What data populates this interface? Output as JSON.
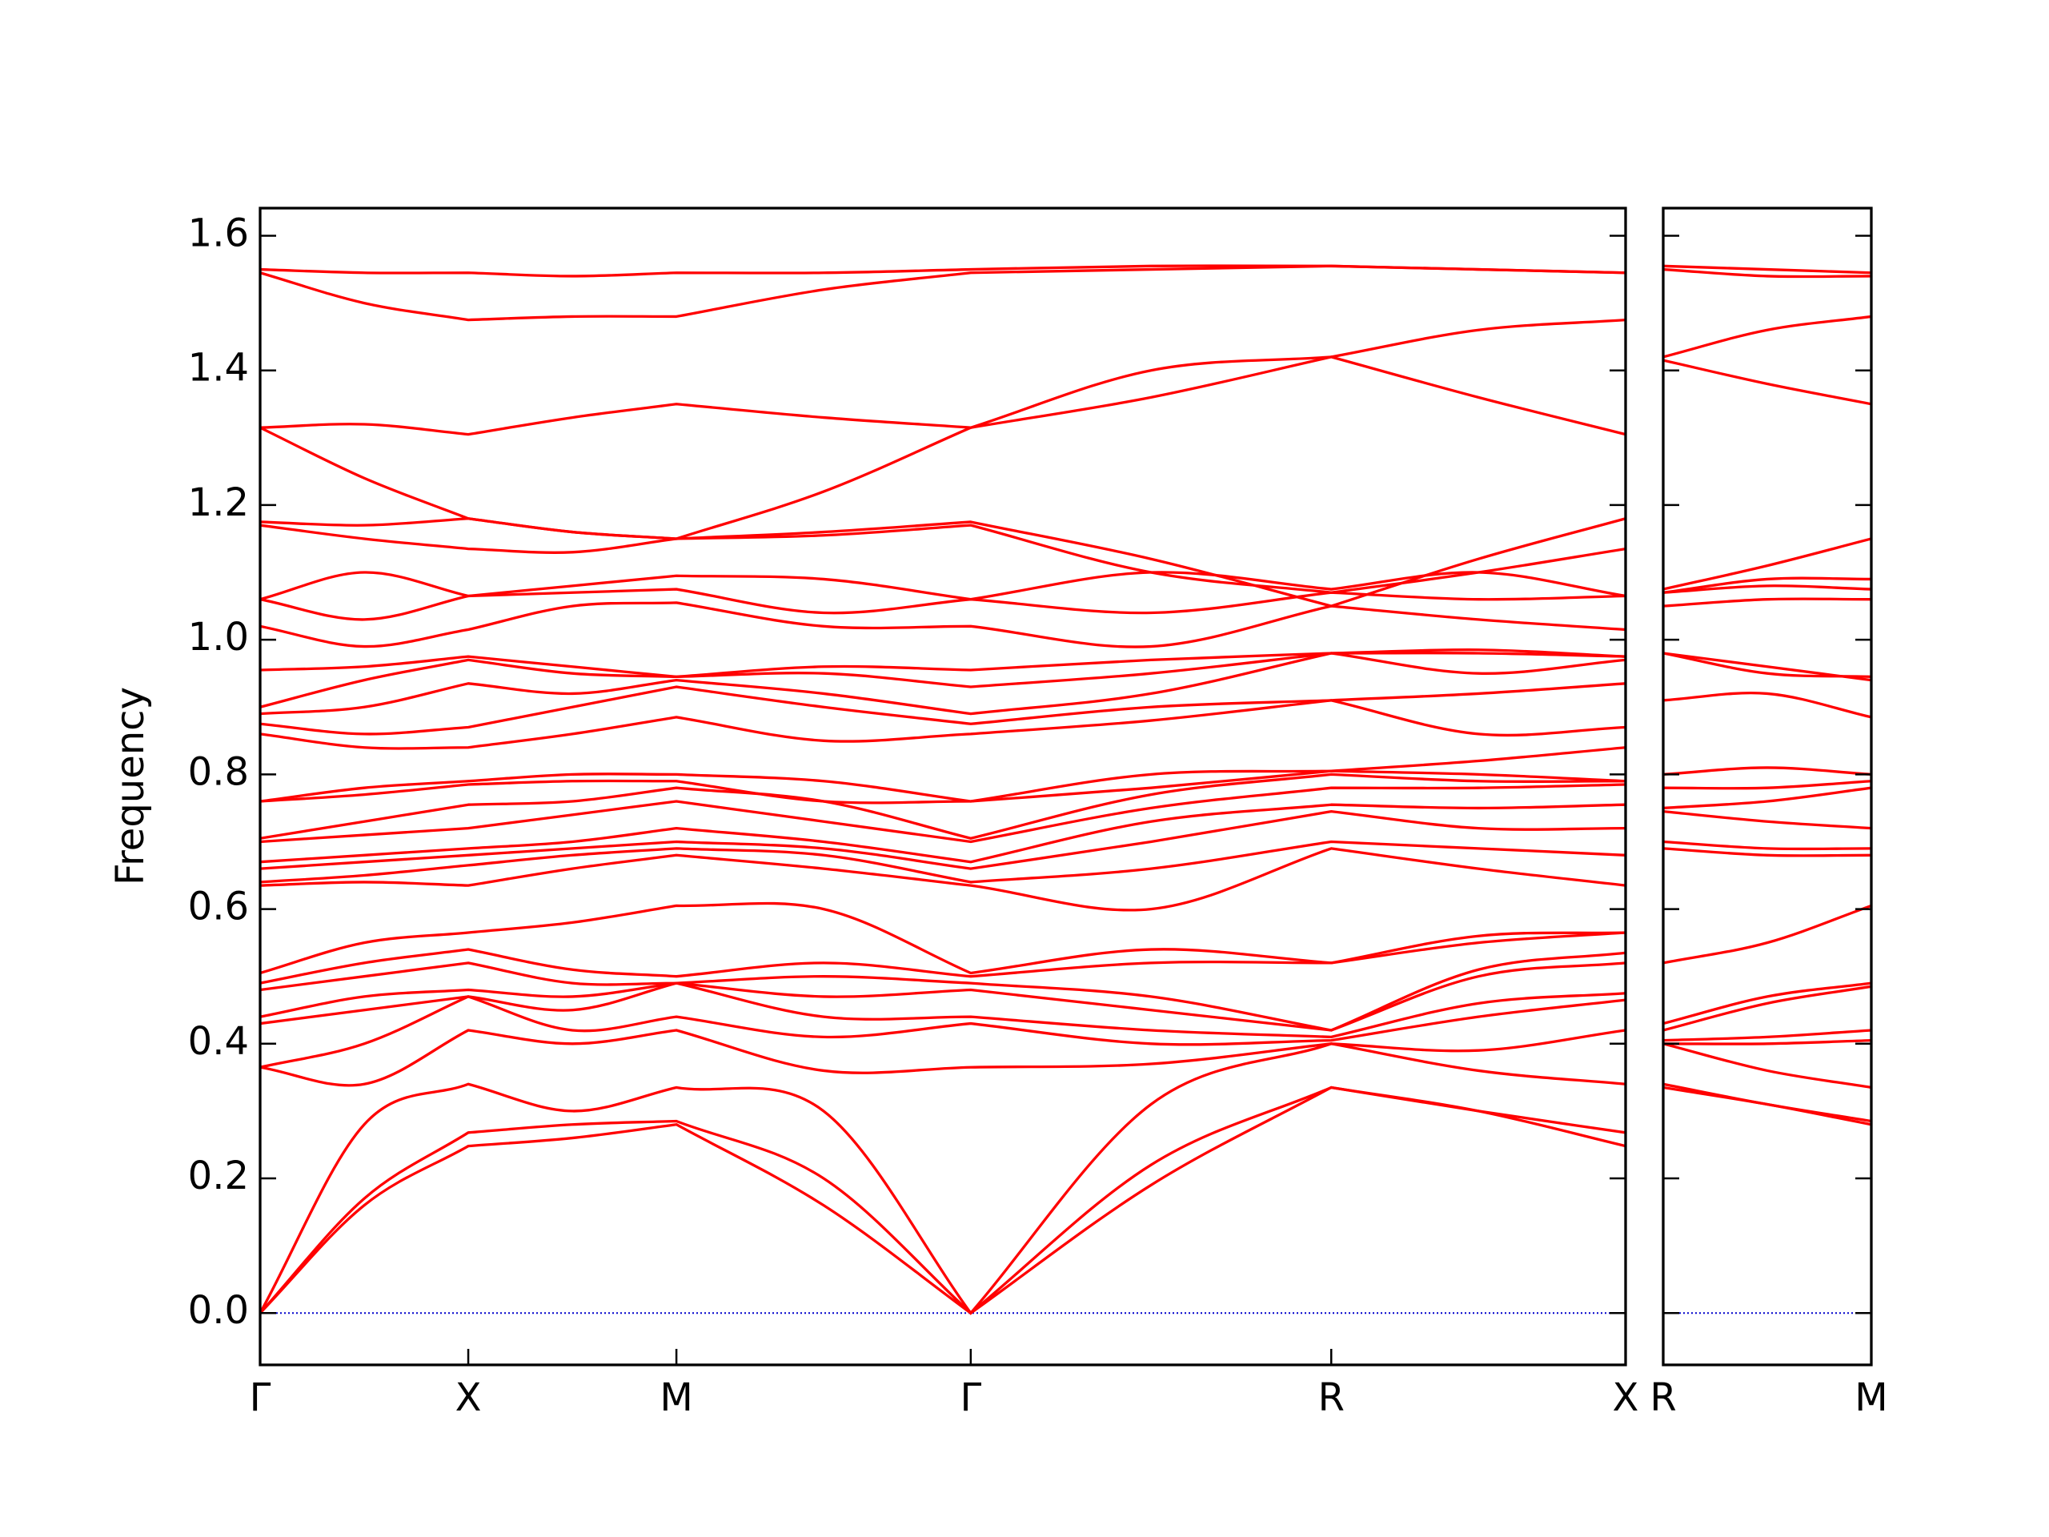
{
  "chart_data": [
    {
      "type": "line",
      "ylabel": "Frequency",
      "color": "#ff0000",
      "hline": 0,
      "hline_color": "#0000cc",
      "ytick_labels": true,
      "ylim": [
        -0.077,
        1.641
      ],
      "yticks": [
        {
          "value": 0,
          "label": "0.0"
        },
        0.2,
        0.4,
        0.6,
        0.8,
        {
          "value": 1.0,
          "label": "1.0"
        },
        1.2,
        1.4,
        1.6
      ],
      "xlim": [
        0,
        3.2802
      ],
      "xticks": [
        {
          "value": 0,
          "label": "Γ"
        },
        {
          "value": 0.5,
          "label": "X"
        },
        {
          "value": 1.0,
          "label": "M"
        },
        {
          "value": 1.7071,
          "label": "Γ"
        },
        {
          "value": 2.5731,
          "label": "R"
        },
        {
          "value": 3.2802,
          "label": "X"
        }
      ],
      "x": [
        0,
        0.25,
        0.5,
        0.75,
        1.0,
        1.3536,
        1.7071,
        2.1401,
        2.5731,
        2.9267,
        3.2802
      ],
      "series": [
        {
          "color": "#ff0000",
          "values": [
            0,
            0.16,
            0.248,
            0.26,
            0.28,
            0.16,
            0,
            0.19,
            0.335,
            0.3,
            0.248
          ]
        },
        {
          "color": "#ff0000",
          "values": [
            0,
            0.17,
            0.268,
            0.28,
            0.285,
            0.2,
            0,
            0.22,
            0.335,
            0.3,
            0.268
          ]
        },
        {
          "color": "#ff0000",
          "values": [
            0,
            0.28,
            0.34,
            0.3,
            0.335,
            0.3,
            0,
            0.31,
            0.4,
            0.36,
            0.34
          ]
        },
        {
          "color": "#ff0000",
          "values": [
            0.365,
            0.34,
            0.42,
            0.4,
            0.42,
            0.36,
            0.365,
            0.37,
            0.4,
            0.39,
            0.42
          ]
        },
        {
          "color": "#ff0000",
          "values": [
            0.365,
            0.4,
            0.47,
            0.42,
            0.44,
            0.41,
            0.43,
            0.4,
            0.405,
            0.44,
            0.465
          ]
        },
        {
          "color": "#ff0000",
          "values": [
            0.43,
            0.45,
            0.47,
            0.45,
            0.49,
            0.44,
            0.44,
            0.42,
            0.41,
            0.46,
            0.475
          ]
        },
        {
          "color": "#ff0000",
          "values": [
            0.44,
            0.47,
            0.48,
            0.47,
            0.49,
            0.47,
            0.48,
            0.45,
            0.42,
            0.5,
            0.52
          ]
        },
        {
          "color": "#ff0000",
          "values": [
            0.48,
            0.5,
            0.52,
            0.49,
            0.49,
            0.5,
            0.49,
            0.47,
            0.42,
            0.51,
            0.535
          ]
        },
        {
          "color": "#ff0000",
          "values": [
            0.49,
            0.52,
            0.54,
            0.51,
            0.5,
            0.52,
            0.5,
            0.52,
            0.52,
            0.55,
            0.565
          ]
        },
        {
          "color": "#ff0000",
          "values": [
            0.505,
            0.55,
            0.565,
            0.58,
            0.605,
            0.6,
            0.505,
            0.54,
            0.52,
            0.56,
            0.565
          ]
        },
        {
          "color": "#ff0000",
          "values": [
            0.635,
            0.64,
            0.635,
            0.66,
            0.68,
            0.66,
            0.635,
            0.6,
            0.69,
            0.66,
            0.635
          ]
        },
        {
          "color": "#ff0000",
          "values": [
            0.64,
            0.65,
            0.665,
            0.68,
            0.69,
            0.68,
            0.64,
            0.66,
            0.7,
            0.69,
            0.68
          ]
        },
        {
          "color": "#ff0000",
          "values": [
            0.66,
            0.67,
            0.68,
            0.69,
            0.7,
            0.69,
            0.66,
            0.7,
            0.745,
            0.72,
            0.72
          ]
        },
        {
          "color": "#ff0000",
          "values": [
            0.67,
            0.68,
            0.69,
            0.7,
            0.72,
            0.7,
            0.67,
            0.73,
            0.755,
            0.75,
            0.755
          ]
        },
        {
          "color": "#ff0000",
          "values": [
            0.7,
            0.71,
            0.72,
            0.74,
            0.76,
            0.73,
            0.7,
            0.75,
            0.78,
            0.78,
            0.785
          ]
        },
        {
          "color": "#ff0000",
          "values": [
            0.705,
            0.73,
            0.755,
            0.76,
            0.78,
            0.76,
            0.705,
            0.77,
            0.8,
            0.79,
            0.79
          ]
        },
        {
          "color": "#ff0000",
          "values": [
            0.76,
            0.77,
            0.785,
            0.79,
            0.79,
            0.76,
            0.76,
            0.78,
            0.805,
            0.8,
            0.79
          ]
        },
        {
          "color": "#ff0000",
          "values": [
            0.76,
            0.78,
            0.79,
            0.8,
            0.8,
            0.79,
            0.76,
            0.8,
            0.805,
            0.82,
            0.84
          ]
        },
        {
          "color": "#ff0000",
          "values": [
            0.86,
            0.84,
            0.84,
            0.86,
            0.885,
            0.85,
            0.86,
            0.88,
            0.91,
            0.86,
            0.87
          ]
        },
        {
          "color": "#ff0000",
          "values": [
            0.875,
            0.86,
            0.87,
            0.9,
            0.93,
            0.9,
            0.875,
            0.9,
            0.91,
            0.92,
            0.935
          ]
        },
        {
          "color": "#ff0000",
          "values": [
            0.89,
            0.9,
            0.935,
            0.92,
            0.94,
            0.92,
            0.89,
            0.92,
            0.98,
            0.95,
            0.97
          ]
        },
        {
          "color": "#ff0000",
          "values": [
            0.9,
            0.94,
            0.97,
            0.95,
            0.945,
            0.95,
            0.93,
            0.95,
            0.98,
            0.985,
            0.975
          ]
        },
        {
          "color": "#ff0000",
          "values": [
            0.955,
            0.96,
            0.975,
            0.96,
            0.945,
            0.96,
            0.955,
            0.97,
            0.98,
            0.98,
            0.975
          ]
        },
        {
          "color": "#ff0000",
          "values": [
            1.02,
            0.99,
            1.015,
            1.05,
            1.055,
            1.02,
            1.02,
            0.99,
            1.05,
            1.03,
            1.015
          ]
        },
        {
          "color": "#ff0000",
          "values": [
            1.06,
            1.03,
            1.065,
            1.07,
            1.075,
            1.04,
            1.06,
            1.04,
            1.07,
            1.06,
            1.065
          ]
        },
        {
          "color": "#ff0000",
          "values": [
            1.06,
            1.1,
            1.065,
            1.08,
            1.095,
            1.09,
            1.06,
            1.1,
            1.075,
            1.1,
            1.065
          ]
        },
        {
          "color": "#ff0000",
          "values": [
            1.17,
            1.15,
            1.135,
            1.13,
            1.15,
            1.155,
            1.17,
            1.1,
            1.07,
            1.1,
            1.135
          ]
        },
        {
          "color": "#ff0000",
          "values": [
            1.175,
            1.17,
            1.18,
            1.16,
            1.15,
            1.16,
            1.175,
            1.12,
            1.05,
            1.12,
            1.18
          ]
        },
        {
          "color": "#ff0000",
          "values": [
            1.315,
            1.24,
            1.18,
            1.16,
            1.15,
            1.22,
            1.315,
            1.36,
            1.42,
            1.36,
            1.305
          ]
        },
        {
          "color": "#ff0000",
          "values": [
            1.315,
            1.32,
            1.305,
            1.33,
            1.35,
            1.33,
            1.315,
            1.4,
            1.42,
            1.46,
            1.475
          ]
        },
        {
          "color": "#ff0000",
          "values": [
            1.545,
            1.5,
            1.475,
            1.48,
            1.48,
            1.52,
            1.545,
            1.55,
            1.555,
            1.55,
            1.545
          ]
        },
        {
          "color": "#ff0000",
          "values": [
            1.55,
            1.545,
            1.545,
            1.54,
            1.545,
            1.545,
            1.55,
            1.555,
            1.555,
            1.55,
            1.545
          ]
        }
      ]
    },
    {
      "type": "line",
      "color": "#ff0000",
      "hline": 0,
      "hline_color": "#0000cc",
      "ytick_labels": false,
      "ylim": [
        -0.077,
        1.641
      ],
      "yticks": [
        0,
        0.2,
        0.4,
        0.6,
        0.8,
        1,
        1.2,
        1.4,
        1.6
      ],
      "xlim": [
        0,
        0.5
      ],
      "xticks": [
        {
          "value": 0,
          "label": "R"
        },
        {
          "value": 0.5,
          "label": "M"
        }
      ],
      "x": [
        0,
        0.25,
        0.5
      ],
      "series": [
        {
          "color": "#ff0000",
          "values": [
            0.335,
            0.31,
            0.28
          ]
        },
        {
          "color": "#ff0000",
          "values": [
            0.34,
            0.31,
            0.285
          ]
        },
        {
          "color": "#ff0000",
          "values": [
            0.4,
            0.36,
            0.335
          ]
        },
        {
          "color": "#ff0000",
          "values": [
            0.4,
            0.4,
            0.405
          ]
        },
        {
          "color": "#ff0000",
          "values": [
            0.405,
            0.41,
            0.42
          ]
        },
        {
          "color": "#ff0000",
          "values": [
            0.42,
            0.46,
            0.485
          ]
        },
        {
          "color": "#ff0000",
          "values": [
            0.43,
            0.47,
            0.49
          ]
        },
        {
          "color": "#ff0000",
          "values": [
            0.52,
            0.55,
            0.605
          ]
        },
        {
          "color": "#ff0000",
          "values": [
            0.69,
            0.68,
            0.68
          ]
        },
        {
          "color": "#ff0000",
          "values": [
            0.7,
            0.69,
            0.69
          ]
        },
        {
          "color": "#ff0000",
          "values": [
            0.745,
            0.73,
            0.72
          ]
        },
        {
          "color": "#ff0000",
          "values": [
            0.75,
            0.76,
            0.78
          ]
        },
        {
          "color": "#ff0000",
          "values": [
            0.78,
            0.78,
            0.79
          ]
        },
        {
          "color": "#ff0000",
          "values": [
            0.8,
            0.81,
            0.8
          ]
        },
        {
          "color": "#ff0000",
          "values": [
            0.91,
            0.92,
            0.885
          ]
        },
        {
          "color": "#ff0000",
          "values": [
            0.98,
            0.96,
            0.94
          ]
        },
        {
          "color": "#ff0000",
          "values": [
            0.98,
            0.95,
            0.945
          ]
        },
        {
          "color": "#ff0000",
          "values": [
            1.05,
            1.06,
            1.06
          ]
        },
        {
          "color": "#ff0000",
          "values": [
            1.07,
            1.08,
            1.075
          ]
        },
        {
          "color": "#ff0000",
          "values": [
            1.07,
            1.09,
            1.09
          ]
        },
        {
          "color": "#ff0000",
          "values": [
            1.075,
            1.11,
            1.15
          ]
        },
        {
          "color": "#ff0000",
          "values": [
            1.415,
            1.38,
            1.35
          ]
        },
        {
          "color": "#ff0000",
          "values": [
            1.42,
            1.46,
            1.48
          ]
        },
        {
          "color": "#ff0000",
          "values": [
            1.55,
            1.54,
            1.54
          ]
        },
        {
          "color": "#ff0000",
          "values": [
            1.555,
            1.55,
            1.545
          ]
        }
      ]
    }
  ]
}
